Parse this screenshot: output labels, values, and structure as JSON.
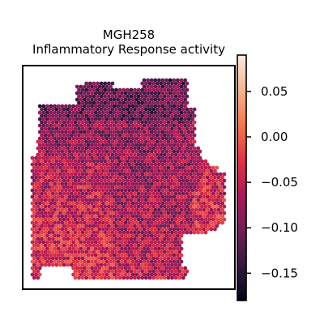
{
  "chart_data": {
    "type": "scatter",
    "title": "MGH258",
    "subtitle": "Inflammatory Response activity",
    "xlabel": "",
    "ylabel": "",
    "grid": false,
    "colormap": "rocket",
    "color_range": [
      -0.18,
      0.09
    ],
    "colorbar_ticks": [
      0.05,
      0.0,
      -0.05,
      -0.1,
      -0.15
    ],
    "colorbar_tick_labels": [
      "0.05",
      "0.00",
      "−0.05",
      "−0.10",
      "−0.15"
    ],
    "colorbar_stops": [
      "#03051a",
      "#35193e",
      "#701f57",
      "#ad1759",
      "#e13342",
      "#f37651",
      "#f6b48f",
      "#faebdd"
    ],
    "spot_value_mean": -0.075,
    "spot_value_spread": 0.045
  }
}
